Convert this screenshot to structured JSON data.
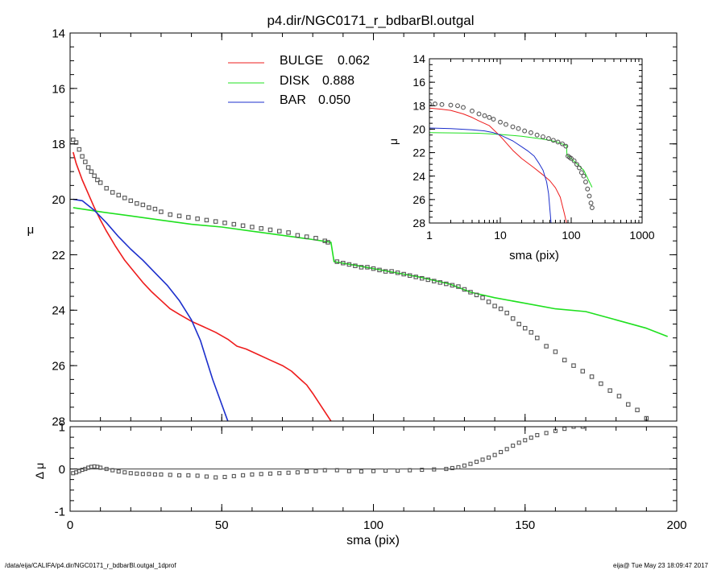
{
  "title": "p4.dir/NGC0171_r_bdbarBl.outgal",
  "footer_left": "/data/eija/CALIFA/p4.dir/NGC0171_r_bdbarBl.outgal_1dprof",
  "footer_right": "eija@  Tue May 23 18:09:47 2017",
  "colors": {
    "bulge": "#ee1c1c",
    "disk": "#1fe01f",
    "bar": "#1c2fcc",
    "data": "#555555",
    "axis": "#000000"
  },
  "chart_data": [
    {
      "id": "main",
      "type": "line",
      "xlabel": "sma (pix)",
      "ylabel": "μ",
      "xlim": [
        0,
        200
      ],
      "ylim": [
        28,
        14
      ],
      "y_inverted": true,
      "xticks": [
        "0",
        "50",
        "100",
        "150",
        "200"
      ],
      "yticks": [
        "14",
        "16",
        "18",
        "20",
        "22",
        "24",
        "26",
        "28"
      ],
      "legend": [
        {
          "name": "BULGE",
          "value": "0.062",
          "color": "#ee1c1c"
        },
        {
          "name": "DISK",
          "value": "0.888",
          "color": "#1fe01f"
        },
        {
          "name": "BAR",
          "value": "0.050",
          "color": "#1c2fcc"
        }
      ],
      "series": [
        {
          "name": "BULGE",
          "color": "#ee1c1c",
          "x": [
            1,
            2,
            4,
            6,
            8,
            10,
            12,
            15,
            18,
            21,
            24,
            27,
            30,
            33,
            36,
            40,
            44,
            48,
            52,
            55,
            58,
            62,
            66,
            70,
            73,
            76,
            78,
            80,
            83,
            86
          ],
          "y": [
            18.3,
            18.7,
            19.3,
            19.8,
            20.3,
            20.75,
            21.15,
            21.7,
            22.2,
            22.6,
            23.0,
            23.35,
            23.65,
            23.95,
            24.15,
            24.4,
            24.6,
            24.8,
            25.05,
            25.3,
            25.4,
            25.6,
            25.8,
            26.0,
            26.2,
            26.5,
            26.7,
            27.0,
            27.5,
            28.0
          ]
        },
        {
          "name": "DISK",
          "color": "#1fe01f",
          "x": [
            1,
            10,
            20,
            30,
            40,
            50,
            60,
            70,
            80,
            86,
            86.5,
            87,
            95,
            105,
            115,
            125,
            132,
            140,
            150,
            160,
            170,
            180,
            190,
            197
          ],
          "y": [
            20.3,
            20.45,
            20.6,
            20.75,
            20.9,
            21.0,
            21.15,
            21.3,
            21.45,
            21.55,
            21.9,
            22.25,
            22.4,
            22.6,
            22.8,
            23.05,
            23.35,
            23.55,
            23.75,
            23.95,
            24.05,
            24.35,
            24.65,
            24.95
          ]
        },
        {
          "name": "BAR",
          "color": "#1c2fcc",
          "x": [
            1,
            4,
            8,
            12,
            16,
            20,
            24,
            28,
            32,
            36,
            40,
            43,
            45,
            47,
            49,
            51,
            52
          ],
          "y": [
            20.0,
            20.05,
            20.4,
            20.85,
            21.35,
            21.8,
            22.2,
            22.65,
            23.1,
            23.65,
            24.35,
            25.1,
            25.8,
            26.5,
            27.1,
            27.7,
            28.0
          ]
        },
        {
          "name": "data",
          "color": "#555555",
          "marker": "square",
          "x": [
            1,
            2,
            3,
            4,
            5,
            6,
            7,
            8,
            9,
            10,
            12,
            14,
            16,
            18,
            20,
            22,
            24,
            26,
            28,
            30,
            33,
            36,
            39,
            42,
            45,
            48,
            51,
            54,
            57,
            60,
            63,
            66,
            69,
            72,
            75,
            78,
            81,
            84,
            85,
            88,
            90,
            92,
            94,
            96,
            98,
            100,
            102,
            104,
            106,
            108,
            110,
            112,
            114,
            116,
            118,
            120,
            122,
            124,
            126,
            128,
            130,
            132,
            134,
            136,
            138,
            140,
            142,
            144,
            146,
            148,
            150,
            152,
            154,
            157,
            160,
            163,
            166,
            169,
            172,
            175,
            178,
            181,
            184,
            187,
            190,
            193,
            196
          ],
          "y": [
            17.85,
            17.95,
            18.2,
            18.45,
            18.65,
            18.85,
            19.0,
            19.15,
            19.3,
            19.4,
            19.6,
            19.75,
            19.85,
            19.95,
            20.05,
            20.15,
            20.2,
            20.3,
            20.35,
            20.45,
            20.55,
            20.6,
            20.65,
            20.7,
            20.75,
            20.8,
            20.85,
            20.9,
            20.95,
            21.0,
            21.05,
            21.1,
            21.15,
            21.2,
            21.3,
            21.35,
            21.4,
            21.5,
            21.55,
            22.25,
            22.3,
            22.35,
            22.4,
            22.45,
            22.45,
            22.5,
            22.55,
            22.6,
            22.6,
            22.65,
            22.7,
            22.75,
            22.8,
            22.85,
            22.9,
            22.95,
            23.0,
            23.05,
            23.1,
            23.15,
            23.25,
            23.35,
            23.45,
            23.55,
            23.7,
            23.85,
            23.95,
            24.1,
            24.3,
            24.5,
            24.65,
            24.8,
            25.0,
            25.3,
            25.5,
            25.8,
            26.0,
            26.2,
            26.4,
            26.65,
            26.9,
            27.1,
            27.4,
            27.6,
            27.9,
            28.2,
            28.5
          ]
        }
      ]
    },
    {
      "id": "inset",
      "type": "line",
      "xlabel": "sma (pix)",
      "ylabel": "μ",
      "x_scale": "log",
      "xlim": [
        1,
        1000
      ],
      "ylim": [
        28,
        14
      ],
      "y_inverted": true,
      "xticks": [
        "1",
        "10",
        "100",
        "1000"
      ],
      "yticks": [
        "14",
        "16",
        "18",
        "20",
        "22",
        "24",
        "26",
        "28"
      ],
      "series": [
        {
          "name": "BULGE",
          "color": "#ee1c1c",
          "x": [
            1,
            1.5,
            2,
            3,
            4,
            5,
            7,
            10,
            15,
            20,
            30,
            40,
            50,
            60,
            70,
            80,
            86
          ],
          "y": [
            18.2,
            18.3,
            18.4,
            18.7,
            19.0,
            19.3,
            19.7,
            20.6,
            21.8,
            22.5,
            23.3,
            23.9,
            24.4,
            25.0,
            25.8,
            27.2,
            28.0
          ]
        },
        {
          "name": "DISK",
          "color": "#1fe01f",
          "x": [
            1,
            5,
            10,
            20,
            40,
            60,
            86,
            87,
            100,
            150,
            197
          ],
          "y": [
            20.3,
            20.35,
            20.45,
            20.6,
            20.85,
            21.05,
            21.4,
            22.2,
            22.5,
            23.5,
            24.95
          ]
        },
        {
          "name": "BAR",
          "color": "#1c2fcc",
          "x": [
            1,
            2,
            4,
            6,
            8,
            10,
            15,
            20,
            25,
            30,
            35,
            40,
            45,
            48,
            50,
            52
          ],
          "y": [
            19.9,
            19.95,
            20.05,
            20.15,
            20.3,
            20.5,
            21.0,
            21.5,
            21.9,
            22.3,
            22.9,
            23.5,
            24.5,
            25.5,
            26.8,
            28.0
          ]
        },
        {
          "name": "data",
          "color": "#555555",
          "marker": "circle",
          "x": [
            1,
            1.2,
            1.5,
            2,
            2.5,
            3,
            4,
            5,
            6,
            7,
            8,
            10,
            12,
            15,
            18,
            22,
            27,
            33,
            40,
            48,
            56,
            65,
            75,
            84,
            90,
            95,
            100,
            110,
            120,
            130,
            140,
            150,
            160,
            170,
            180,
            190,
            197
          ],
          "y": [
            17.85,
            17.85,
            17.9,
            17.95,
            18.0,
            18.15,
            18.45,
            18.7,
            18.85,
            19.0,
            19.15,
            19.4,
            19.6,
            19.8,
            19.95,
            20.15,
            20.3,
            20.5,
            20.65,
            20.8,
            20.95,
            21.1,
            21.25,
            21.45,
            22.3,
            22.4,
            22.5,
            22.7,
            23.0,
            23.3,
            23.7,
            24.0,
            24.5,
            25.1,
            25.7,
            26.3,
            26.7
          ]
        }
      ]
    },
    {
      "id": "residual",
      "type": "scatter",
      "xlabel": "sma (pix)",
      "ylabel": "Δ μ",
      "xlim": [
        0,
        200
      ],
      "ylim": [
        -1,
        1
      ],
      "xticks": [
        "0",
        "50",
        "100",
        "150",
        "200"
      ],
      "yticks": [
        "-1",
        "0",
        "1"
      ],
      "series": [
        {
          "name": "residual",
          "color": "#555555",
          "marker": "square",
          "x": [
            1,
            2,
            3,
            4,
            5,
            6,
            7,
            8,
            9,
            10,
            12,
            14,
            16,
            18,
            20,
            22,
            24,
            26,
            28,
            30,
            33,
            36,
            39,
            42,
            45,
            48,
            51,
            54,
            57,
            60,
            63,
            66,
            69,
            72,
            75,
            78,
            81,
            84,
            88,
            92,
            96,
            100,
            104,
            108,
            112,
            116,
            120,
            124,
            126,
            128,
            130,
            132,
            134,
            136,
            138,
            140,
            142,
            144,
            146,
            148,
            150,
            152,
            154,
            157,
            160,
            163,
            166,
            169
          ],
          "y": [
            -0.1,
            -0.08,
            -0.05,
            -0.02,
            0.0,
            0.03,
            0.05,
            0.06,
            0.05,
            0.03,
            0.0,
            -0.03,
            -0.06,
            -0.08,
            -0.1,
            -0.11,
            -0.12,
            -0.12,
            -0.13,
            -0.13,
            -0.14,
            -0.15,
            -0.15,
            -0.16,
            -0.18,
            -0.2,
            -0.19,
            -0.17,
            -0.15,
            -0.13,
            -0.12,
            -0.11,
            -0.1,
            -0.09,
            -0.08,
            -0.06,
            -0.05,
            -0.03,
            -0.03,
            -0.05,
            -0.06,
            -0.05,
            -0.04,
            -0.04,
            -0.03,
            -0.02,
            -0.01,
            0.0,
            0.02,
            0.04,
            0.08,
            0.12,
            0.17,
            0.22,
            0.27,
            0.33,
            0.4,
            0.47,
            0.55,
            0.62,
            0.68,
            0.74,
            0.8,
            0.85,
            0.9,
            0.95,
            1.0,
            1.0
          ]
        }
      ]
    }
  ]
}
